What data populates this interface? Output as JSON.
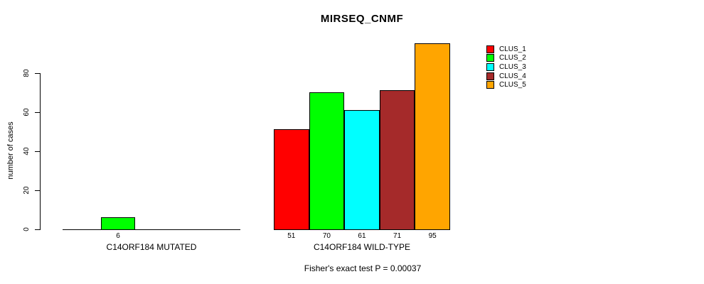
{
  "figure": {
    "background": "#ffffff",
    "text_color": "#000000"
  },
  "chart_data": {
    "type": "bar",
    "title": "MIRSEQ_CNMF",
    "xlabel": "",
    "ylabel": "number of cases",
    "ylim": [
      0,
      95
    ],
    "yticks": [
      0,
      20,
      40,
      60,
      80
    ],
    "grid": false,
    "legend_position": "top-right-outside",
    "groups": [
      {
        "label": "C14ORF184 MUTATED",
        "bars": [
          {
            "cluster": "CLUS_2",
            "value": 6,
            "color": "#00FF00"
          }
        ]
      },
      {
        "label": "C14ORF184 WILD-TYPE",
        "bars": [
          {
            "cluster": "CLUS_1",
            "value": 51,
            "color": "#FF0000"
          },
          {
            "cluster": "CLUS_2",
            "value": 70,
            "color": "#00FF00"
          },
          {
            "cluster": "CLUS_3",
            "value": 61,
            "color": "#00FFFF"
          },
          {
            "cluster": "CLUS_4",
            "value": 71,
            "color": "#A52A2A"
          },
          {
            "cluster": "CLUS_5",
            "value": 95,
            "color": "#FFA500"
          }
        ]
      }
    ],
    "legend": [
      {
        "label": "CLUS_1",
        "color": "#FF0000"
      },
      {
        "label": "CLUS_2",
        "color": "#00FF00"
      },
      {
        "label": "CLUS_3",
        "color": "#00FFFF"
      },
      {
        "label": "CLUS_4",
        "color": "#A52A2A"
      },
      {
        "label": "CLUS_5",
        "color": "#FFA500"
      }
    ],
    "annotation": "Fisher's exact test P = 0.00037"
  }
}
